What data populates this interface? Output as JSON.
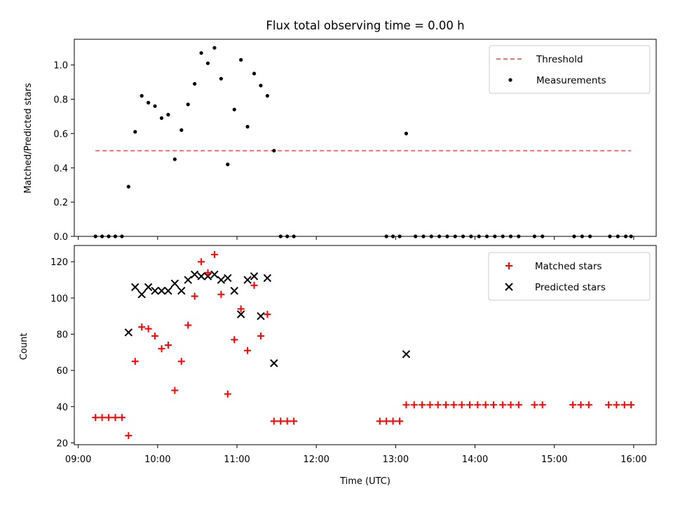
{
  "chart_data": [
    {
      "type": "scatter",
      "title": "Flux total observing time = 0.00 h",
      "xlabel": "",
      "ylabel": "Matched/Predicted stars",
      "ylim": [
        0,
        1.15
      ],
      "yticks": [
        0.0,
        0.2,
        0.4,
        0.6,
        0.8,
        1.0
      ],
      "yticklabels": [
        "0.0",
        "0.2",
        "0.4",
        "0.6",
        "0.8",
        "1.0"
      ],
      "grid": false,
      "legend": "top-right",
      "legend_entries": [
        "Threshold",
        "Measurements"
      ],
      "threshold": {
        "name": "Threshold",
        "value": 0.5,
        "x_range": [
          "09:13",
          "15:58"
        ],
        "color": "#ff7070",
        "style": "dashed"
      },
      "series": [
        {
          "name": "Measurements",
          "color": "#000000",
          "marker": "dot",
          "points": [
            [
              "09:13",
              0.0
            ],
            [
              "09:18",
              0.0
            ],
            [
              "09:23",
              0.0
            ],
            [
              "09:28",
              0.0
            ],
            [
              "09:33",
              0.0
            ],
            [
              "09:38",
              0.29
            ],
            [
              "09:43",
              0.61
            ],
            [
              "09:48",
              0.82
            ],
            [
              "09:53",
              0.78
            ],
            [
              "09:58",
              0.76
            ],
            [
              "10:03",
              0.69
            ],
            [
              "10:08",
              0.71
            ],
            [
              "10:13",
              0.45
            ],
            [
              "10:18",
              0.62
            ],
            [
              "10:23",
              0.77
            ],
            [
              "10:28",
              0.89
            ],
            [
              "10:33",
              1.07
            ],
            [
              "10:38",
              1.01
            ],
            [
              "10:43",
              1.1
            ],
            [
              "10:48",
              0.92
            ],
            [
              "10:53",
              0.42
            ],
            [
              "10:58",
              0.74
            ],
            [
              "11:03",
              1.03
            ],
            [
              "11:08",
              0.64
            ],
            [
              "11:13",
              0.95
            ],
            [
              "11:18",
              0.88
            ],
            [
              "11:23",
              0.82
            ],
            [
              "11:28",
              0.5
            ],
            [
              "11:33",
              0.0
            ],
            [
              "11:38",
              0.0
            ],
            [
              "11:43",
              0.0
            ],
            [
              "12:53",
              0.0
            ],
            [
              "12:58",
              0.0
            ],
            [
              "13:03",
              0.0
            ],
            [
              "13:08",
              0.6
            ],
            [
              "13:15",
              0.0
            ],
            [
              "13:21",
              0.0
            ],
            [
              "13:27",
              0.0
            ],
            [
              "13:33",
              0.0
            ],
            [
              "13:39",
              0.0
            ],
            [
              "13:45",
              0.0
            ],
            [
              "13:51",
              0.0
            ],
            [
              "13:57",
              0.0
            ],
            [
              "14:03",
              0.0
            ],
            [
              "14:09",
              0.0
            ],
            [
              "14:15",
              0.0
            ],
            [
              "14:21",
              0.0
            ],
            [
              "14:27",
              0.0
            ],
            [
              "14:33",
              0.0
            ],
            [
              "14:45",
              0.0
            ],
            [
              "14:51",
              0.0
            ],
            [
              "15:15",
              0.0
            ],
            [
              "15:21",
              0.0
            ],
            [
              "15:27",
              0.0
            ],
            [
              "15:42",
              0.0
            ],
            [
              "15:48",
              0.0
            ],
            [
              "15:54",
              0.0
            ],
            [
              "15:58",
              0.0
            ]
          ]
        }
      ]
    },
    {
      "type": "scatter",
      "title": "",
      "xlabel": "Time (UTC)",
      "ylabel": "Count",
      "ylim": [
        19,
        129
      ],
      "yticks": [
        20,
        40,
        60,
        80,
        100,
        120
      ],
      "xlim": [
        "08:57",
        "16:17"
      ],
      "xticks": [
        "09:00",
        "10:00",
        "11:00",
        "12:00",
        "13:00",
        "14:00",
        "15:00",
        "16:00"
      ],
      "grid": false,
      "legend": "top-right",
      "legend_entries": [
        "Matched stars",
        "Predicted stars"
      ],
      "series": [
        {
          "name": "Matched stars",
          "color": "#ff0000",
          "marker": "plus",
          "points": [
            [
              "09:13",
              34
            ],
            [
              "09:18",
              34
            ],
            [
              "09:23",
              34
            ],
            [
              "09:28",
              34
            ],
            [
              "09:33",
              34
            ],
            [
              "09:38",
              24
            ],
            [
              "09:43",
              65
            ],
            [
              "09:48",
              84
            ],
            [
              "09:53",
              83
            ],
            [
              "09:58",
              79
            ],
            [
              "10:03",
              72
            ],
            [
              "10:08",
              74
            ],
            [
              "10:13",
              49
            ],
            [
              "10:18",
              65
            ],
            [
              "10:23",
              85
            ],
            [
              "10:28",
              101
            ],
            [
              "10:33",
              120
            ],
            [
              "10:38",
              114
            ],
            [
              "10:43",
              124
            ],
            [
              "10:48",
              102
            ],
            [
              "10:53",
              47
            ],
            [
              "10:58",
              77
            ],
            [
              "11:03",
              94
            ],
            [
              "11:08",
              71
            ],
            [
              "11:13",
              107
            ],
            [
              "11:18",
              79
            ],
            [
              "11:23",
              91
            ],
            [
              "11:28",
              32
            ],
            [
              "11:33",
              32
            ],
            [
              "11:38",
              32
            ],
            [
              "11:43",
              32
            ],
            [
              "12:48",
              32
            ],
            [
              "12:53",
              32
            ],
            [
              "12:58",
              32
            ],
            [
              "13:03",
              32
            ],
            [
              "13:08",
              41
            ],
            [
              "13:14",
              41
            ],
            [
              "13:20",
              41
            ],
            [
              "13:26",
              41
            ],
            [
              "13:32",
              41
            ],
            [
              "13:38",
              41
            ],
            [
              "13:44",
              41
            ],
            [
              "13:50",
              41
            ],
            [
              "13:56",
              41
            ],
            [
              "14:02",
              41
            ],
            [
              "14:08",
              41
            ],
            [
              "14:14",
              41
            ],
            [
              "14:21",
              41
            ],
            [
              "14:27",
              41
            ],
            [
              "14:33",
              41
            ],
            [
              "14:45",
              41
            ],
            [
              "14:51",
              41
            ],
            [
              "15:14",
              41
            ],
            [
              "15:20",
              41
            ],
            [
              "15:26",
              41
            ],
            [
              "15:41",
              41
            ],
            [
              "15:47",
              41
            ],
            [
              "15:53",
              41
            ],
            [
              "15:58",
              41
            ]
          ]
        },
        {
          "name": "Predicted stars",
          "color": "#000000",
          "marker": "x",
          "points": [
            [
              "09:38",
              81
            ],
            [
              "09:43",
              106
            ],
            [
              "09:48",
              102
            ],
            [
              "09:53",
              106
            ],
            [
              "09:58",
              104
            ],
            [
              "10:03",
              104
            ],
            [
              "10:08",
              104
            ],
            [
              "10:13",
              108
            ],
            [
              "10:18",
              104
            ],
            [
              "10:23",
              110
            ],
            [
              "10:28",
              113
            ],
            [
              "10:33",
              112
            ],
            [
              "10:38",
              112
            ],
            [
              "10:43",
              113
            ],
            [
              "10:48",
              110
            ],
            [
              "10:53",
              111
            ],
            [
              "10:58",
              104
            ],
            [
              "11:03",
              91
            ],
            [
              "11:08",
              110
            ],
            [
              "11:13",
              112
            ],
            [
              "11:18",
              90
            ],
            [
              "11:23",
              111
            ],
            [
              "11:28",
              64
            ],
            [
              "13:08",
              69
            ]
          ]
        }
      ]
    }
  ]
}
